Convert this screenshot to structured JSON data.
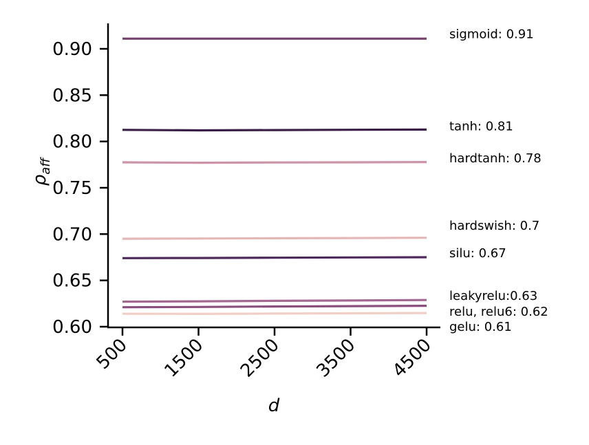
{
  "chart_data": {
    "type": "line",
    "title": "",
    "xlabel": "d",
    "ylabel_main": "ρ",
    "ylabel_sub": "aff",
    "xlim": [
      500,
      4500
    ],
    "ylim": [
      0.6,
      0.92
    ],
    "x_ticks": [
      500,
      1500,
      2500,
      3500,
      4500
    ],
    "y_ticks": [
      0.6,
      0.65,
      0.7,
      0.75,
      0.8,
      0.85,
      0.9
    ],
    "x_tick_labels": [
      "500",
      "1500",
      "2500",
      "3500",
      "4500"
    ],
    "y_tick_labels": [
      "0.60",
      "0.65",
      "0.70",
      "0.75",
      "0.80",
      "0.85",
      "0.90"
    ],
    "grid": false,
    "series": [
      {
        "name": "sigmoid",
        "label": "sigmoid: 0.91",
        "color": "#70406b",
        "x": [
          500,
          1500,
          2500,
          3500,
          4500
        ],
        "values": [
          0.911,
          0.911,
          0.911,
          0.911,
          0.911
        ]
      },
      {
        "name": "tanh",
        "label": "tanh: 0.81",
        "color": "#3a1f48",
        "x": [
          500,
          1500,
          2500,
          3500,
          4500
        ],
        "values": [
          0.8125,
          0.812,
          0.8123,
          0.8126,
          0.8128
        ]
      },
      {
        "name": "hardtanh",
        "label": "hardtanh: 0.78",
        "color": "#cc94a4",
        "x": [
          500,
          1500,
          2500,
          3500,
          4500
        ],
        "values": [
          0.7775,
          0.777,
          0.7773,
          0.7775,
          0.7778
        ]
      },
      {
        "name": "hardswish",
        "label": "hardswish: 0.7",
        "color": "#e4b8b8",
        "x": [
          500,
          1500,
          2500,
          3500,
          4500
        ],
        "values": [
          0.695,
          0.6952,
          0.6955,
          0.6957,
          0.696
        ]
      },
      {
        "name": "silu",
        "label": "silu: 0.67",
        "color": "#4e2a5c",
        "x": [
          500,
          1500,
          2500,
          3500,
          4500
        ],
        "values": [
          0.674,
          0.6742,
          0.6745,
          0.6748,
          0.675
        ]
      },
      {
        "name": "leakyrelu",
        "label": "leakyrelu:0.63",
        "color": "#a3688f",
        "x": [
          500,
          1500,
          2500,
          3500,
          4500
        ],
        "values": [
          0.627,
          0.6274,
          0.6279,
          0.6283,
          0.6288
        ]
      },
      {
        "name": "relu, relu6",
        "label": "relu, relu6: 0.62",
        "color": "#8a4f7d",
        "x": [
          500,
          1500,
          2500,
          3500,
          4500
        ],
        "values": [
          0.621,
          0.6213,
          0.6218,
          0.6222,
          0.6226
        ]
      },
      {
        "name": "gelu",
        "label": "gelu: 0.61",
        "color": "#f0cfc6",
        "x": [
          500,
          1500,
          2500,
          3500,
          4500
        ],
        "values": [
          0.614,
          0.6138,
          0.6142,
          0.6145,
          0.6148
        ]
      }
    ],
    "annotations": [
      {
        "text": "sigmoid: 0.91",
        "y": 0.916
      },
      {
        "text": "tanh: 0.81",
        "y": 0.8165
      },
      {
        "text": "hardtanh: 0.78",
        "y": 0.782
      },
      {
        "text": "hardswish: 0.7",
        "y": 0.709
      },
      {
        "text": "silu: 0.67",
        "y": 0.6795
      },
      {
        "text": "leakyrelu:0.63",
        "y": 0.6335
      },
      {
        "text": "relu, relu6: 0.62",
        "y": 0.6165
      },
      {
        "text": "gelu: 0.61",
        "y": 0.6
      },
      {
        "text": "",
        "y": 0
      }
    ]
  }
}
